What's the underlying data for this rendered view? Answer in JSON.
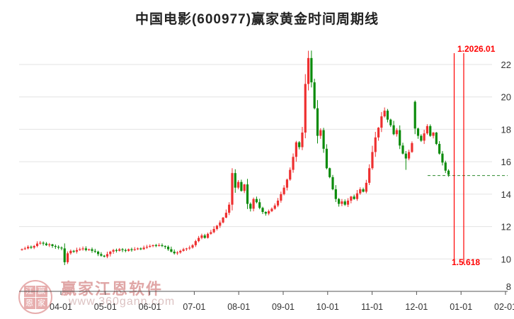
{
  "title": "中国电影(600977)赢家黄金时间周期线",
  "watermark": {
    "logo_chars": [
      "江",
      "赢",
      "恩",
      "家"
    ],
    "name": "赢家江恩软件",
    "url": "www.360gann.com"
  },
  "period_lines": {
    "top_label": "1.2026.01",
    "bottom_label": "1.5.618"
  },
  "chart_data": {
    "type": "candlestick",
    "title": "中国电影(600977)赢家黄金时间周期线",
    "x_axis": {
      "tick_labels": [
        "04-01",
        "05-01",
        "06-01",
        "07-01",
        "08-01",
        "09-01",
        "10-01",
        "11-01",
        "12-01",
        "01-01",
        "02-01"
      ]
    },
    "y_axis": {
      "tick_labels": [
        "22",
        "20",
        "18",
        "16",
        "14",
        "12",
        "10",
        "8"
      ],
      "range": [
        8,
        23.4
      ],
      "grid": true
    },
    "closes": [
      10.6,
      10.65,
      10.75,
      10.7,
      10.8,
      10.95,
      11.0,
      10.95,
      10.85,
      10.9,
      10.8,
      10.75,
      10.7,
      10.65,
      9.8,
      10.35,
      10.5,
      10.45,
      10.55,
      10.6,
      10.65,
      10.55,
      10.6,
      10.5,
      10.45,
      10.3,
      10.2,
      10.15,
      10.3,
      10.45,
      10.55,
      10.5,
      10.6,
      10.55,
      10.5,
      10.6,
      10.55,
      10.6,
      10.65,
      10.6,
      10.7,
      10.75,
      10.8,
      10.85,
      10.8,
      10.85,
      10.8,
      10.75,
      10.6,
      10.45,
      10.35,
      10.4,
      10.5,
      10.6,
      10.65,
      10.7,
      10.85,
      11.1,
      11.3,
      11.45,
      11.3,
      11.55,
      11.65,
      11.85,
      12.05,
      12.25,
      12.55,
      12.85,
      13.35,
      15.3,
      14.4,
      14.75,
      14.2,
      14.6,
      13.4,
      13.1,
      13.7,
      13.5,
      13.15,
      12.9,
      12.8,
      12.95,
      13.1,
      13.3,
      13.6,
      14.0,
      14.4,
      14.9,
      15.5,
      16.3,
      17.2,
      16.9,
      17.8,
      20.8,
      22.4,
      20.9,
      19.3,
      17.6,
      17.95,
      16.8,
      15.6,
      15.05,
      14.3,
      13.7,
      13.4,
      13.55,
      13.35,
      13.6,
      13.85,
      13.7,
      14.05,
      14.3,
      14.15,
      14.7,
      15.6,
      16.6,
      17.5,
      18.1,
      18.8,
      19.15,
      18.6,
      18.25,
      17.7,
      17.95,
      17.0,
      16.5,
      16.2,
      16.6,
      17.15,
      18.05,
      17.6,
      17.3,
      17.75,
      18.2,
      17.6,
      17.8,
      17.1,
      16.5,
      15.95,
      15.45,
      15.2
    ],
    "open_overrides": {
      "129": 19.7
    },
    "wick_high_overrides": {
      "94": 22.85,
      "69": 15.6,
      "119": 19.35,
      "129": 19.78
    },
    "wick_low_overrides": {
      "14": 9.62,
      "126": 15.5
    },
    "dashed_level": 15.15,
    "period_line_labels": {
      "top": "1.2026.01",
      "bottom": "1.5.618"
    },
    "legend": "none",
    "colors": {
      "up": "#ee3030",
      "down": "#0b8b0b",
      "grid": "#e3e3e3",
      "axis": "#555555",
      "label": "#333333",
      "dashed_line": "#2e8b2e",
      "period_line": "#ff0000",
      "watermark": "#e0a6a6"
    }
  }
}
